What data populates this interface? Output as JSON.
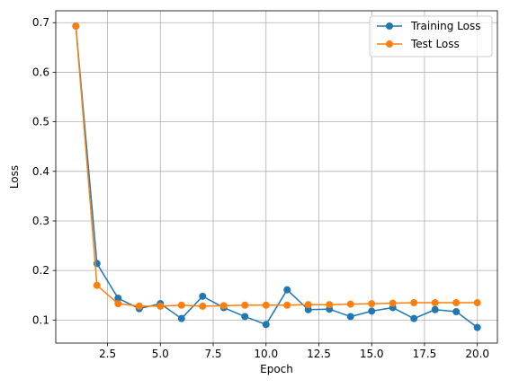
{
  "chart_data": {
    "type": "line",
    "title": "",
    "xlabel": "Epoch",
    "ylabel": "Loss",
    "xlim": [
      0.05,
      20.95
    ],
    "ylim": [
      0.0535,
      0.724
    ],
    "x_ticks": [
      2.5,
      5.0,
      7.5,
      10.0,
      12.5,
      15.0,
      17.5,
      20.0
    ],
    "x_tick_labels": [
      "2.5",
      "5.0",
      "7.5",
      "10.0",
      "12.5",
      "15.0",
      "17.5",
      "20.0"
    ],
    "y_ticks": [
      0.1,
      0.2,
      0.3,
      0.4,
      0.5,
      0.6,
      0.7
    ],
    "y_tick_labels": [
      "0.1",
      "0.2",
      "0.3",
      "0.4",
      "0.5",
      "0.6",
      "0.7"
    ],
    "grid": true,
    "legend_position": "top-right",
    "x": [
      1,
      2,
      3,
      4,
      5,
      6,
      7,
      8,
      9,
      10,
      11,
      12,
      13,
      14,
      15,
      16,
      17,
      18,
      19,
      20
    ],
    "series": [
      {
        "name": "Training Loss",
        "color": "#1f77b4",
        "marker": "circle",
        "values": [
          0.693,
          0.214,
          0.144,
          0.123,
          0.133,
          0.103,
          0.148,
          0.125,
          0.107,
          0.091,
          0.161,
          0.121,
          0.122,
          0.107,
          0.118,
          0.125,
          0.103,
          0.121,
          0.117,
          0.085
        ]
      },
      {
        "name": "Test Loss",
        "color": "#ff7f0e",
        "marker": "circle",
        "values": [
          0.693,
          0.17,
          0.133,
          0.128,
          0.128,
          0.13,
          0.128,
          0.129,
          0.13,
          0.13,
          0.13,
          0.131,
          0.131,
          0.132,
          0.133,
          0.134,
          0.135,
          0.135,
          0.135,
          0.135
        ]
      }
    ]
  }
}
